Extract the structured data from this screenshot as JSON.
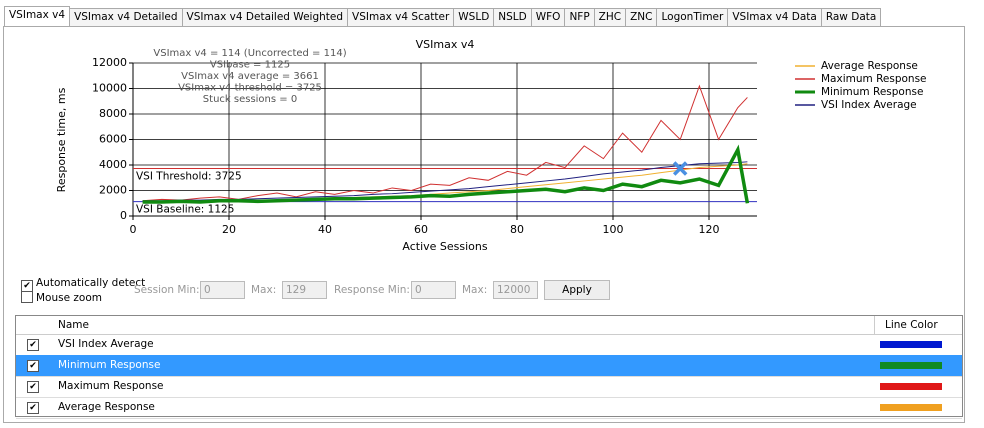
{
  "tabs": {
    "items": [
      "VSImax v4",
      "VSImax v4 Detailed",
      "VSImax v4 Detailed Weighted",
      "VSImax v4 Scatter",
      "WSLD",
      "NSLD",
      "WFO",
      "NFP",
      "ZHC",
      "ZNC",
      "LogonTimer",
      "VSImax v4 Data",
      "Raw Data"
    ],
    "active": 0
  },
  "chart_data": {
    "type": "line",
    "title": "VSImax v4",
    "x_label": "Active Sessions",
    "y_label": "Response time, ms",
    "annotations": [
      "VSImax v4 = 114 (Uncorrected = 114)",
      "VSIbase = 1125",
      "VSImax v4 average = 3661",
      "VSImax v4 threshold = 3725",
      "Stuck sessions = 0"
    ],
    "x": [
      2,
      6,
      10,
      14,
      18,
      22,
      26,
      30,
      34,
      38,
      42,
      46,
      50,
      54,
      58,
      62,
      66,
      70,
      74,
      78,
      82,
      86,
      90,
      94,
      98,
      102,
      106,
      110,
      114,
      118,
      122,
      126,
      128
    ],
    "series": [
      {
        "name": "Average Response",
        "color": "#f0b030",
        "values": [
          1100,
          1100,
          1150,
          1150,
          1200,
          1200,
          1250,
          1250,
          1300,
          1350,
          1400,
          1450,
          1500,
          1550,
          1600,
          1700,
          1800,
          1900,
          2000,
          2150,
          2300,
          2450,
          2600,
          2750,
          2900,
          3050,
          3200,
          3400,
          3600,
          3800,
          3900,
          4000,
          4100
        ]
      },
      {
        "name": "Maximum Response",
        "color": "#d03030",
        "values": [
          1200,
          1300,
          1250,
          1400,
          1500,
          1300,
          1600,
          1800,
          1500,
          1900,
          1700,
          2000,
          1800,
          2200,
          2000,
          2500,
          2400,
          3000,
          2800,
          3500,
          3200,
          4200,
          3800,
          5500,
          4500,
          6500,
          5000,
          7500,
          6000,
          10200,
          6000,
          8500,
          9300
        ]
      },
      {
        "name": "Minimum Response",
        "color": "#108a10",
        "values": [
          1100,
          1100,
          1150,
          1100,
          1200,
          1200,
          1150,
          1200,
          1250,
          1300,
          1350,
          1350,
          1400,
          1450,
          1500,
          1600,
          1550,
          1700,
          1800,
          1900,
          2000,
          2100,
          1900,
          2200,
          2000,
          2500,
          2300,
          2800,
          2600,
          2900,
          2400,
          5200,
          1000
        ]
      },
      {
        "name": "VSI Index Average",
        "color": "#202080",
        "values": [
          1200,
          1200,
          1250,
          1250,
          1300,
          1300,
          1350,
          1400,
          1450,
          1500,
          1550,
          1600,
          1700,
          1750,
          1850,
          1950,
          2050,
          2150,
          2300,
          2450,
          2600,
          2750,
          2900,
          3100,
          3300,
          3450,
          3600,
          3800,
          3950,
          4100,
          4150,
          4200,
          4250
        ]
      }
    ],
    "thresholds": [
      {
        "label": "VSI Threshold: 3725",
        "value": 3725,
        "color": "#d03030"
      },
      {
        "label": "VSI Baseline: 1125",
        "value": 1125,
        "color": "#3030c0"
      }
    ],
    "vsimax_marker": {
      "x": 114,
      "y": 3725,
      "color": "#4a90e2"
    },
    "xlim": [
      0,
      130
    ],
    "ylim": [
      0,
      12000
    ],
    "xticks": [
      0,
      20,
      40,
      60,
      80,
      100,
      120
    ],
    "yticks": [
      0,
      2000,
      4000,
      6000,
      8000,
      10000,
      12000
    ],
    "grid": true
  },
  "controls": {
    "auto_detect": {
      "label": "Automatically detect",
      "checked": true
    },
    "mouse_zoom": {
      "label": "Mouse zoom",
      "checked": false
    },
    "session_min": {
      "label": "Session Min:",
      "value": 0
    },
    "session_max": {
      "label": "Max:",
      "value": 129
    },
    "response_min": {
      "label": "Response Min:",
      "value": 0
    },
    "response_max": {
      "label": "Max:",
      "value": 12000
    },
    "apply": "Apply"
  },
  "table": {
    "headers": [
      "Name",
      "Line Color"
    ],
    "selected": 1,
    "rows": [
      {
        "name": "VSI Index Average",
        "checked": true,
        "color": "#0018d0"
      },
      {
        "name": "Minimum Response",
        "checked": true,
        "color": "#108a20"
      },
      {
        "name": "Maximum Response",
        "checked": true,
        "color": "#e01818"
      },
      {
        "name": "Average Response",
        "checked": true,
        "color": "#f0a020"
      }
    ]
  },
  "figure_id": "381831"
}
